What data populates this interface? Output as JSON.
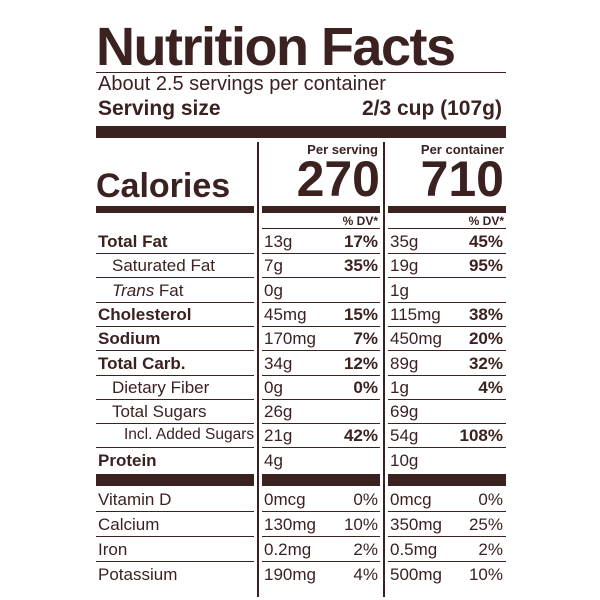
{
  "label": {
    "title": "Nutrition Facts",
    "servings": "About 2.5 servings per container",
    "serving_size_label": "Serving size",
    "serving_size_value": "2/3 cup (107g)",
    "per_serving_label": "Per serving",
    "per_container_label": "Per container",
    "calories_label": "Calories",
    "calories_per_serving": "270",
    "calories_per_container": "710",
    "dv_header": "% DV*",
    "nutrients": [
      {
        "name": "Total Fat",
        "bold": true,
        "indent": 0,
        "serving_amt": "13g",
        "serving_dv": "17%",
        "container_amt": "35g",
        "container_dv": "45%"
      },
      {
        "name": "Saturated Fat",
        "bold": false,
        "indent": 1,
        "serving_amt": "7g",
        "serving_dv": "35%",
        "container_amt": "19g",
        "container_dv": "95%"
      },
      {
        "name_italic": "Trans",
        "name": " Fat",
        "bold": false,
        "indent": 1,
        "serving_amt": "0g",
        "serving_dv": "",
        "container_amt": "1g",
        "container_dv": ""
      },
      {
        "name": "Cholesterol",
        "bold": true,
        "indent": 0,
        "serving_amt": "45mg",
        "serving_dv": "15%",
        "container_amt": "115mg",
        "container_dv": "38%"
      },
      {
        "name": "Sodium",
        "bold": true,
        "indent": 0,
        "serving_amt": "170mg",
        "serving_dv": "7%",
        "container_amt": "450mg",
        "container_dv": "20%"
      },
      {
        "name": "Total Carb.",
        "bold": true,
        "indent": 0,
        "serving_amt": "34g",
        "serving_dv": "12%",
        "container_amt": "89g",
        "container_dv": "32%"
      },
      {
        "name": "Dietary Fiber",
        "bold": false,
        "indent": 1,
        "serving_amt": "0g",
        "serving_dv": "0%",
        "container_amt": "1g",
        "container_dv": "4%"
      },
      {
        "name": "Total Sugars",
        "bold": false,
        "indent": 1,
        "serving_amt": "26g",
        "serving_dv": "",
        "container_amt": "69g",
        "container_dv": ""
      },
      {
        "name": "Incl. Added Sugars",
        "bold": false,
        "indent": 2,
        "serving_amt": "21g",
        "serving_dv": "42%",
        "container_amt": "54g",
        "container_dv": "108%"
      },
      {
        "name": "Protein",
        "bold": true,
        "indent": 0,
        "serving_amt": "4g",
        "serving_dv": "",
        "container_amt": "10g",
        "container_dv": ""
      }
    ],
    "vitamins": [
      {
        "name": "Vitamin D",
        "serving_amt": "0mcg",
        "serving_dv": "0%",
        "container_amt": "0mcg",
        "container_dv": "0%"
      },
      {
        "name": "Calcium",
        "serving_amt": "130mg",
        "serving_dv": "10%",
        "container_amt": "350mg",
        "container_dv": "25%"
      },
      {
        "name": "Iron",
        "serving_amt": "0.2mg",
        "serving_dv": "2%",
        "container_amt": "0.5mg",
        "container_dv": "2%"
      },
      {
        "name": "Potassium",
        "serving_amt": "190mg",
        "serving_dv": "4%",
        "container_amt": "500mg",
        "container_dv": "10%"
      }
    ]
  },
  "colors": {
    "ink": "#3b2220",
    "background": "#ffffff"
  }
}
